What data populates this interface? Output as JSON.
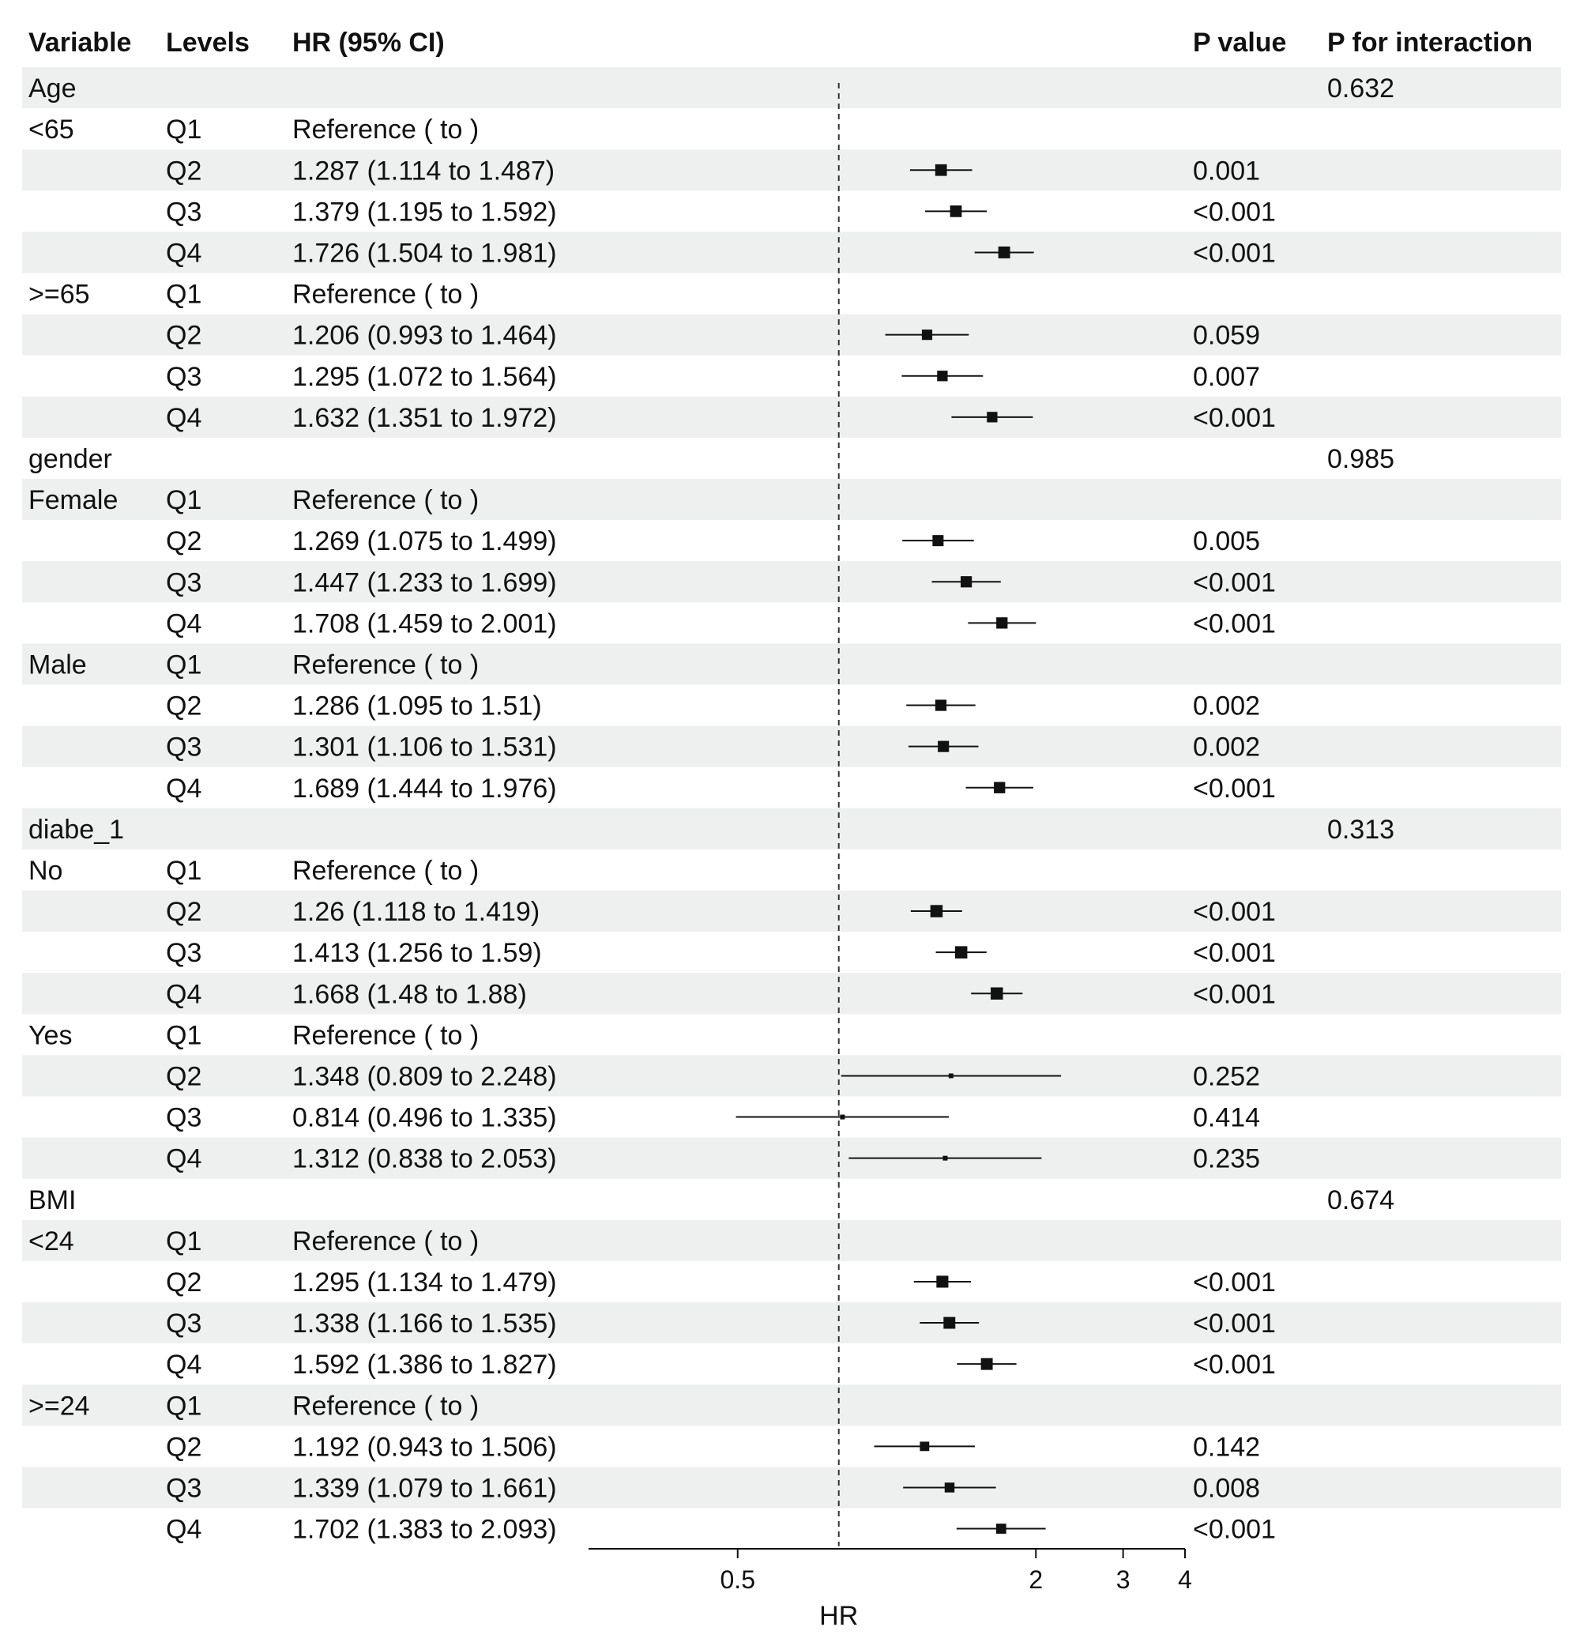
{
  "chart_data": {
    "type": "forest",
    "columns": {
      "variable": "Variable",
      "levels": "Levels",
      "hr": "HR (95% CI)",
      "p": "P value",
      "p_interaction": "P for interaction"
    },
    "xlabel": "HR",
    "x_scale": "log2",
    "xlim": [
      0.25,
      4
    ],
    "x_ticks": [
      {
        "value": 0.5,
        "label": "0.5"
      },
      {
        "value": 2,
        "label": "2"
      },
      {
        "value": 3,
        "label": "3"
      },
      {
        "value": 4,
        "label": "4"
      }
    ],
    "reference_line": 0.8,
    "colors": {
      "stripe": "#eef0ef",
      "marker": "#111111",
      "line": "#111111"
    },
    "rows": [
      {
        "variable": "Age",
        "level": "",
        "hr_text": "",
        "p": "",
        "p_int": "0.632",
        "hr": null,
        "lo": null,
        "hi": null
      },
      {
        "variable": "<65",
        "level": "Q1",
        "hr_text": "Reference ( to )",
        "p": "",
        "p_int": "",
        "hr": null,
        "lo": null,
        "hi": null
      },
      {
        "variable": "",
        "level": "Q2",
        "hr_text": "1.287 (1.114 to 1.487)",
        "p": "0.001",
        "p_int": "",
        "hr": 1.287,
        "lo": 1.114,
        "hi": 1.487
      },
      {
        "variable": "",
        "level": "Q3",
        "hr_text": "1.379 (1.195 to 1.592)",
        "p": "<0.001",
        "p_int": "",
        "hr": 1.379,
        "lo": 1.195,
        "hi": 1.592
      },
      {
        "variable": "",
        "level": "Q4",
        "hr_text": "1.726 (1.504 to 1.981)",
        "p": "<0.001",
        "p_int": "",
        "hr": 1.726,
        "lo": 1.504,
        "hi": 1.981
      },
      {
        "variable": ">=65",
        "level": "Q1",
        "hr_text": "Reference ( to )",
        "p": "",
        "p_int": "",
        "hr": null,
        "lo": null,
        "hi": null
      },
      {
        "variable": "",
        "level": "Q2",
        "hr_text": "1.206 (0.993 to 1.464)",
        "p": "0.059",
        "p_int": "",
        "hr": 1.206,
        "lo": 0.993,
        "hi": 1.464
      },
      {
        "variable": "",
        "level": "Q3",
        "hr_text": "1.295 (1.072 to 1.564)",
        "p": "0.007",
        "p_int": "",
        "hr": 1.295,
        "lo": 1.072,
        "hi": 1.564
      },
      {
        "variable": "",
        "level": "Q4",
        "hr_text": "1.632 (1.351 to 1.972)",
        "p": "<0.001",
        "p_int": "",
        "hr": 1.632,
        "lo": 1.351,
        "hi": 1.972
      },
      {
        "variable": "gender",
        "level": "",
        "hr_text": "",
        "p": "",
        "p_int": "0.985",
        "hr": null,
        "lo": null,
        "hi": null
      },
      {
        "variable": "Female",
        "level": "Q1",
        "hr_text": "Reference ( to )",
        "p": "",
        "p_int": "",
        "hr": null,
        "lo": null,
        "hi": null
      },
      {
        "variable": "",
        "level": "Q2",
        "hr_text": "1.269 (1.075 to 1.499)",
        "p": "0.005",
        "p_int": "",
        "hr": 1.269,
        "lo": 1.075,
        "hi": 1.499
      },
      {
        "variable": "",
        "level": "Q3",
        "hr_text": "1.447 (1.233 to 1.699)",
        "p": "<0.001",
        "p_int": "",
        "hr": 1.447,
        "lo": 1.233,
        "hi": 1.699
      },
      {
        "variable": "",
        "level": "Q4",
        "hr_text": "1.708 (1.459 to 2.001)",
        "p": "<0.001",
        "p_int": "",
        "hr": 1.708,
        "lo": 1.459,
        "hi": 2.001
      },
      {
        "variable": "Male",
        "level": "Q1",
        "hr_text": "Reference ( to )",
        "p": "",
        "p_int": "",
        "hr": null,
        "lo": null,
        "hi": null
      },
      {
        "variable": "",
        "level": "Q2",
        "hr_text": "1.286 (1.095 to 1.51)",
        "p": "0.002",
        "p_int": "",
        "hr": 1.286,
        "lo": 1.095,
        "hi": 1.51
      },
      {
        "variable": "",
        "level": "Q3",
        "hr_text": "1.301 (1.106 to 1.531)",
        "p": "0.002",
        "p_int": "",
        "hr": 1.301,
        "lo": 1.106,
        "hi": 1.531
      },
      {
        "variable": "",
        "level": "Q4",
        "hr_text": "1.689 (1.444 to 1.976)",
        "p": "<0.001",
        "p_int": "",
        "hr": 1.689,
        "lo": 1.444,
        "hi": 1.976
      },
      {
        "variable": "diabe_1",
        "level": "",
        "hr_text": "",
        "p": "",
        "p_int": "0.313",
        "hr": null,
        "lo": null,
        "hi": null
      },
      {
        "variable": "No",
        "level": "Q1",
        "hr_text": "Reference ( to )",
        "p": "",
        "p_int": "",
        "hr": null,
        "lo": null,
        "hi": null
      },
      {
        "variable": "",
        "level": "Q2",
        "hr_text": "1.26 (1.118 to 1.419)",
        "p": "<0.001",
        "p_int": "",
        "hr": 1.26,
        "lo": 1.118,
        "hi": 1.419
      },
      {
        "variable": "",
        "level": "Q3",
        "hr_text": "1.413 (1.256 to 1.59)",
        "p": "<0.001",
        "p_int": "",
        "hr": 1.413,
        "lo": 1.256,
        "hi": 1.59
      },
      {
        "variable": "",
        "level": "Q4",
        "hr_text": "1.668 (1.48 to 1.88)",
        "p": "<0.001",
        "p_int": "",
        "hr": 1.668,
        "lo": 1.48,
        "hi": 1.88
      },
      {
        "variable": "Yes",
        "level": "Q1",
        "hr_text": "Reference ( to )",
        "p": "",
        "p_int": "",
        "hr": null,
        "lo": null,
        "hi": null
      },
      {
        "variable": "",
        "level": "Q2",
        "hr_text": "1.348 (0.809 to 2.248)",
        "p": "0.252",
        "p_int": "",
        "hr": 1.348,
        "lo": 0.809,
        "hi": 2.248
      },
      {
        "variable": "",
        "level": "Q3",
        "hr_text": "0.814 (0.496 to 1.335)",
        "p": "0.414",
        "p_int": "",
        "hr": 0.814,
        "lo": 0.496,
        "hi": 1.335
      },
      {
        "variable": "",
        "level": "Q4",
        "hr_text": "1.312 (0.838 to 2.053)",
        "p": "0.235",
        "p_int": "",
        "hr": 1.312,
        "lo": 0.838,
        "hi": 2.053
      },
      {
        "variable": "BMI",
        "level": "",
        "hr_text": "",
        "p": "",
        "p_int": "0.674",
        "hr": null,
        "lo": null,
        "hi": null
      },
      {
        "variable": "<24",
        "level": "Q1",
        "hr_text": "Reference ( to )",
        "p": "",
        "p_int": "",
        "hr": null,
        "lo": null,
        "hi": null
      },
      {
        "variable": "",
        "level": "Q2",
        "hr_text": "1.295 (1.134 to 1.479)",
        "p": "<0.001",
        "p_int": "",
        "hr": 1.295,
        "lo": 1.134,
        "hi": 1.479
      },
      {
        "variable": "",
        "level": "Q3",
        "hr_text": "1.338 (1.166 to 1.535)",
        "p": "<0.001",
        "p_int": "",
        "hr": 1.338,
        "lo": 1.166,
        "hi": 1.535
      },
      {
        "variable": "",
        "level": "Q4",
        "hr_text": "1.592 (1.386 to 1.827)",
        "p": "<0.001",
        "p_int": "",
        "hr": 1.592,
        "lo": 1.386,
        "hi": 1.827
      },
      {
        "variable": ">=24",
        "level": "Q1",
        "hr_text": "Reference ( to )",
        "p": "",
        "p_int": "",
        "hr": null,
        "lo": null,
        "hi": null
      },
      {
        "variable": "",
        "level": "Q2",
        "hr_text": "1.192 (0.943 to 1.506)",
        "p": "0.142",
        "p_int": "",
        "hr": 1.192,
        "lo": 0.943,
        "hi": 1.506
      },
      {
        "variable": "",
        "level": "Q3",
        "hr_text": "1.339 (1.079 to 1.661)",
        "p": "0.008",
        "p_int": "",
        "hr": 1.339,
        "lo": 1.079,
        "hi": 1.661
      },
      {
        "variable": "",
        "level": "Q4",
        "hr_text": "1.702 (1.383 to 2.093)",
        "p": "<0.001",
        "p_int": "",
        "hr": 1.702,
        "lo": 1.383,
        "hi": 2.093
      }
    ]
  }
}
